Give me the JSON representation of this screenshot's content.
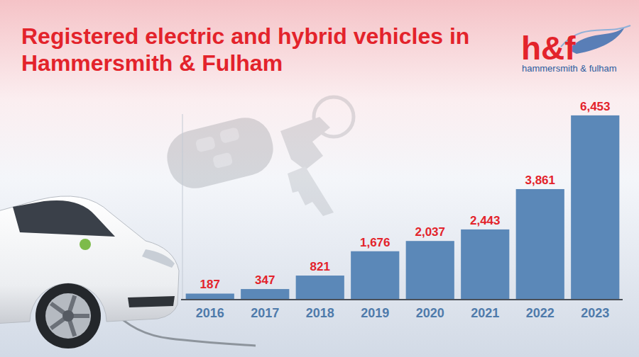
{
  "chart_data": {
    "type": "bar",
    "title": "Registered electric and hybrid vehicles in Hammersmith & Fulham",
    "categories": [
      "2016",
      "2017",
      "2018",
      "2019",
      "2020",
      "2021",
      "2022",
      "2023"
    ],
    "values": [
      187,
      347,
      821,
      1676,
      2037,
      2443,
      3861,
      6453
    ],
    "value_labels": [
      "187",
      "347",
      "821",
      "1,676",
      "2,037",
      "2,443",
      "3,861",
      "6,453"
    ],
    "color": "#5b88b8",
    "ylim": [
      0,
      6500
    ],
    "grid": false,
    "data_labels": true,
    "tick_labels": "x"
  },
  "logo": {
    "mark": "h&f",
    "name": "hammersmith & fulham"
  }
}
